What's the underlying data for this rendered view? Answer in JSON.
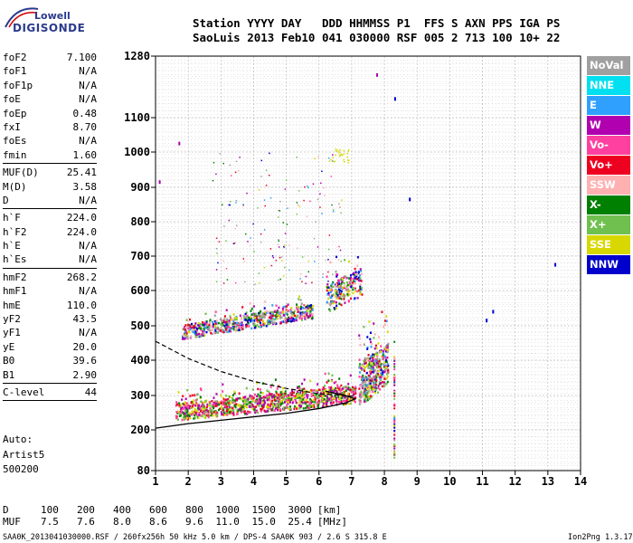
{
  "logo": {
    "line1": "Lowell",
    "line2": "DIGISONDE"
  },
  "header": {
    "row1": "Station YYYY DAY   DDD HHMMSS P1  FFS S AXN PPS IGA PS",
    "row2": "SaoLuis 2013 Feb10 041 030000 RSF 005 2 713 100 10+ 22"
  },
  "params": {
    "group1": [
      {
        "name": "foF2",
        "value": "7.100"
      },
      {
        "name": "foF1",
        "value": "N/A"
      },
      {
        "name": "foF1p",
        "value": "N/A"
      },
      {
        "name": "foE",
        "value": "N/A"
      },
      {
        "name": "foEp",
        "value": "0.48"
      },
      {
        "name": "fxI",
        "value": "8.70"
      },
      {
        "name": "foEs",
        "value": "N/A"
      },
      {
        "name": "fmin",
        "value": "1.60"
      }
    ],
    "group2": [
      {
        "name": "MUF(D)",
        "value": "25.41"
      },
      {
        "name": "M(D)",
        "value": "3.58"
      },
      {
        "name": "D",
        "value": "N/A"
      }
    ],
    "group3": [
      {
        "name": "h`F",
        "value": "224.0"
      },
      {
        "name": "h`F2",
        "value": "224.0"
      },
      {
        "name": "h`E",
        "value": "N/A"
      },
      {
        "name": "h`Es",
        "value": "N/A"
      }
    ],
    "group4": [
      {
        "name": "hmF2",
        "value": "268.2"
      },
      {
        "name": "hmF1",
        "value": "N/A"
      },
      {
        "name": "hmE",
        "value": "110.0"
      },
      {
        "name": "yF2",
        "value": "43.5"
      },
      {
        "name": "yF1",
        "value": "N/A"
      },
      {
        "name": "yE",
        "value": "20.0"
      },
      {
        "name": "B0",
        "value": "39.6"
      },
      {
        "name": "B1",
        "value": "2.90"
      }
    ],
    "clevel": {
      "name": "C-level",
      "value": "44"
    }
  },
  "auto": {
    "line1": "Auto:",
    "line2": "Artist5",
    "line3": "500200"
  },
  "legend": [
    {
      "label": "NoVal",
      "color": "#a0a0a0"
    },
    {
      "label": "NNE",
      "color": "#00e0f0"
    },
    {
      "label": "E",
      "color": "#30a0ff"
    },
    {
      "label": "W",
      "color": "#b000b0"
    },
    {
      "label": "Vo-",
      "color": "#ff40a0"
    },
    {
      "label": "Vo+",
      "color": "#ee0020"
    },
    {
      "label": "SSW",
      "color": "#ffb0b0"
    },
    {
      "label": "X-",
      "color": "#008000"
    },
    {
      "label": "X+",
      "color": "#70c050"
    },
    {
      "label": "SSE",
      "color": "#d8d800"
    },
    {
      "label": "NNW",
      "color": "#0000cc"
    }
  ],
  "chart_data": {
    "type": "scatter",
    "title": "",
    "xlabel": "",
    "ylabel": "",
    "xlim": [
      1,
      14
    ],
    "ylim": [
      80,
      1280
    ],
    "x_ticks": [
      1,
      2,
      3,
      4,
      5,
      6,
      7,
      8,
      9,
      10,
      11,
      12,
      13,
      14
    ],
    "y_ticks": [
      80,
      200,
      300,
      400,
      500,
      600,
      700,
      800,
      900,
      1000,
      1100,
      1280
    ],
    "y_scale": "nonlinear",
    "grid": true,
    "clusters": [
      {
        "name": "F-trace",
        "x_range": [
          1.6,
          7.1
        ],
        "y_center_start": 250,
        "y_center_end": 300,
        "spread": 25
      },
      {
        "name": "F-extra",
        "x_range": [
          7.2,
          8.1
        ],
        "y_center_start": 320,
        "y_center_end": 380,
        "spread": 60
      },
      {
        "name": "2F-trace",
        "x_range": [
          1.8,
          5.8
        ],
        "y_center_start": 480,
        "y_center_end": 540,
        "spread": 20
      },
      {
        "name": "2F-extra",
        "x_range": [
          6.2,
          7.3
        ],
        "y_center_start": 570,
        "y_center_end": 620,
        "spread": 40
      }
    ],
    "profile_solid": [
      [
        1,
        205
      ],
      [
        2,
        218
      ],
      [
        3,
        228
      ],
      [
        4,
        238
      ],
      [
        5,
        248
      ],
      [
        6,
        262
      ],
      [
        6.8,
        278
      ],
      [
        7.1,
        290
      ],
      [
        6.8,
        300
      ],
      [
        6.2,
        312
      ]
    ],
    "profile_dashed": [
      [
        1,
        455
      ],
      [
        2,
        405
      ],
      [
        3,
        368
      ],
      [
        4,
        340
      ],
      [
        5,
        320
      ],
      [
        6,
        305
      ],
      [
        6.8,
        300
      ],
      [
        7.1,
        297
      ]
    ],
    "mufs": {
      "D": [
        "100",
        "200",
        "400",
        "600",
        "800",
        "1000",
        "1500",
        "3000"
      ],
      "MUF": [
        "7.5",
        "7.6",
        "8.0",
        "8.6",
        "9.6",
        "11.0",
        "15.0",
        "25.4"
      ],
      "d_unit": "[km]",
      "muf_unit": "[MHz]"
    }
  },
  "footer": {
    "left": "SAA0K_2013041030000.RSF / 260fx256h 50 kHz 5.0 km / DPS-4 SAA0K 903 / 2.6 S 315.8 E",
    "right": "Ion2Png 1.3.17"
  }
}
